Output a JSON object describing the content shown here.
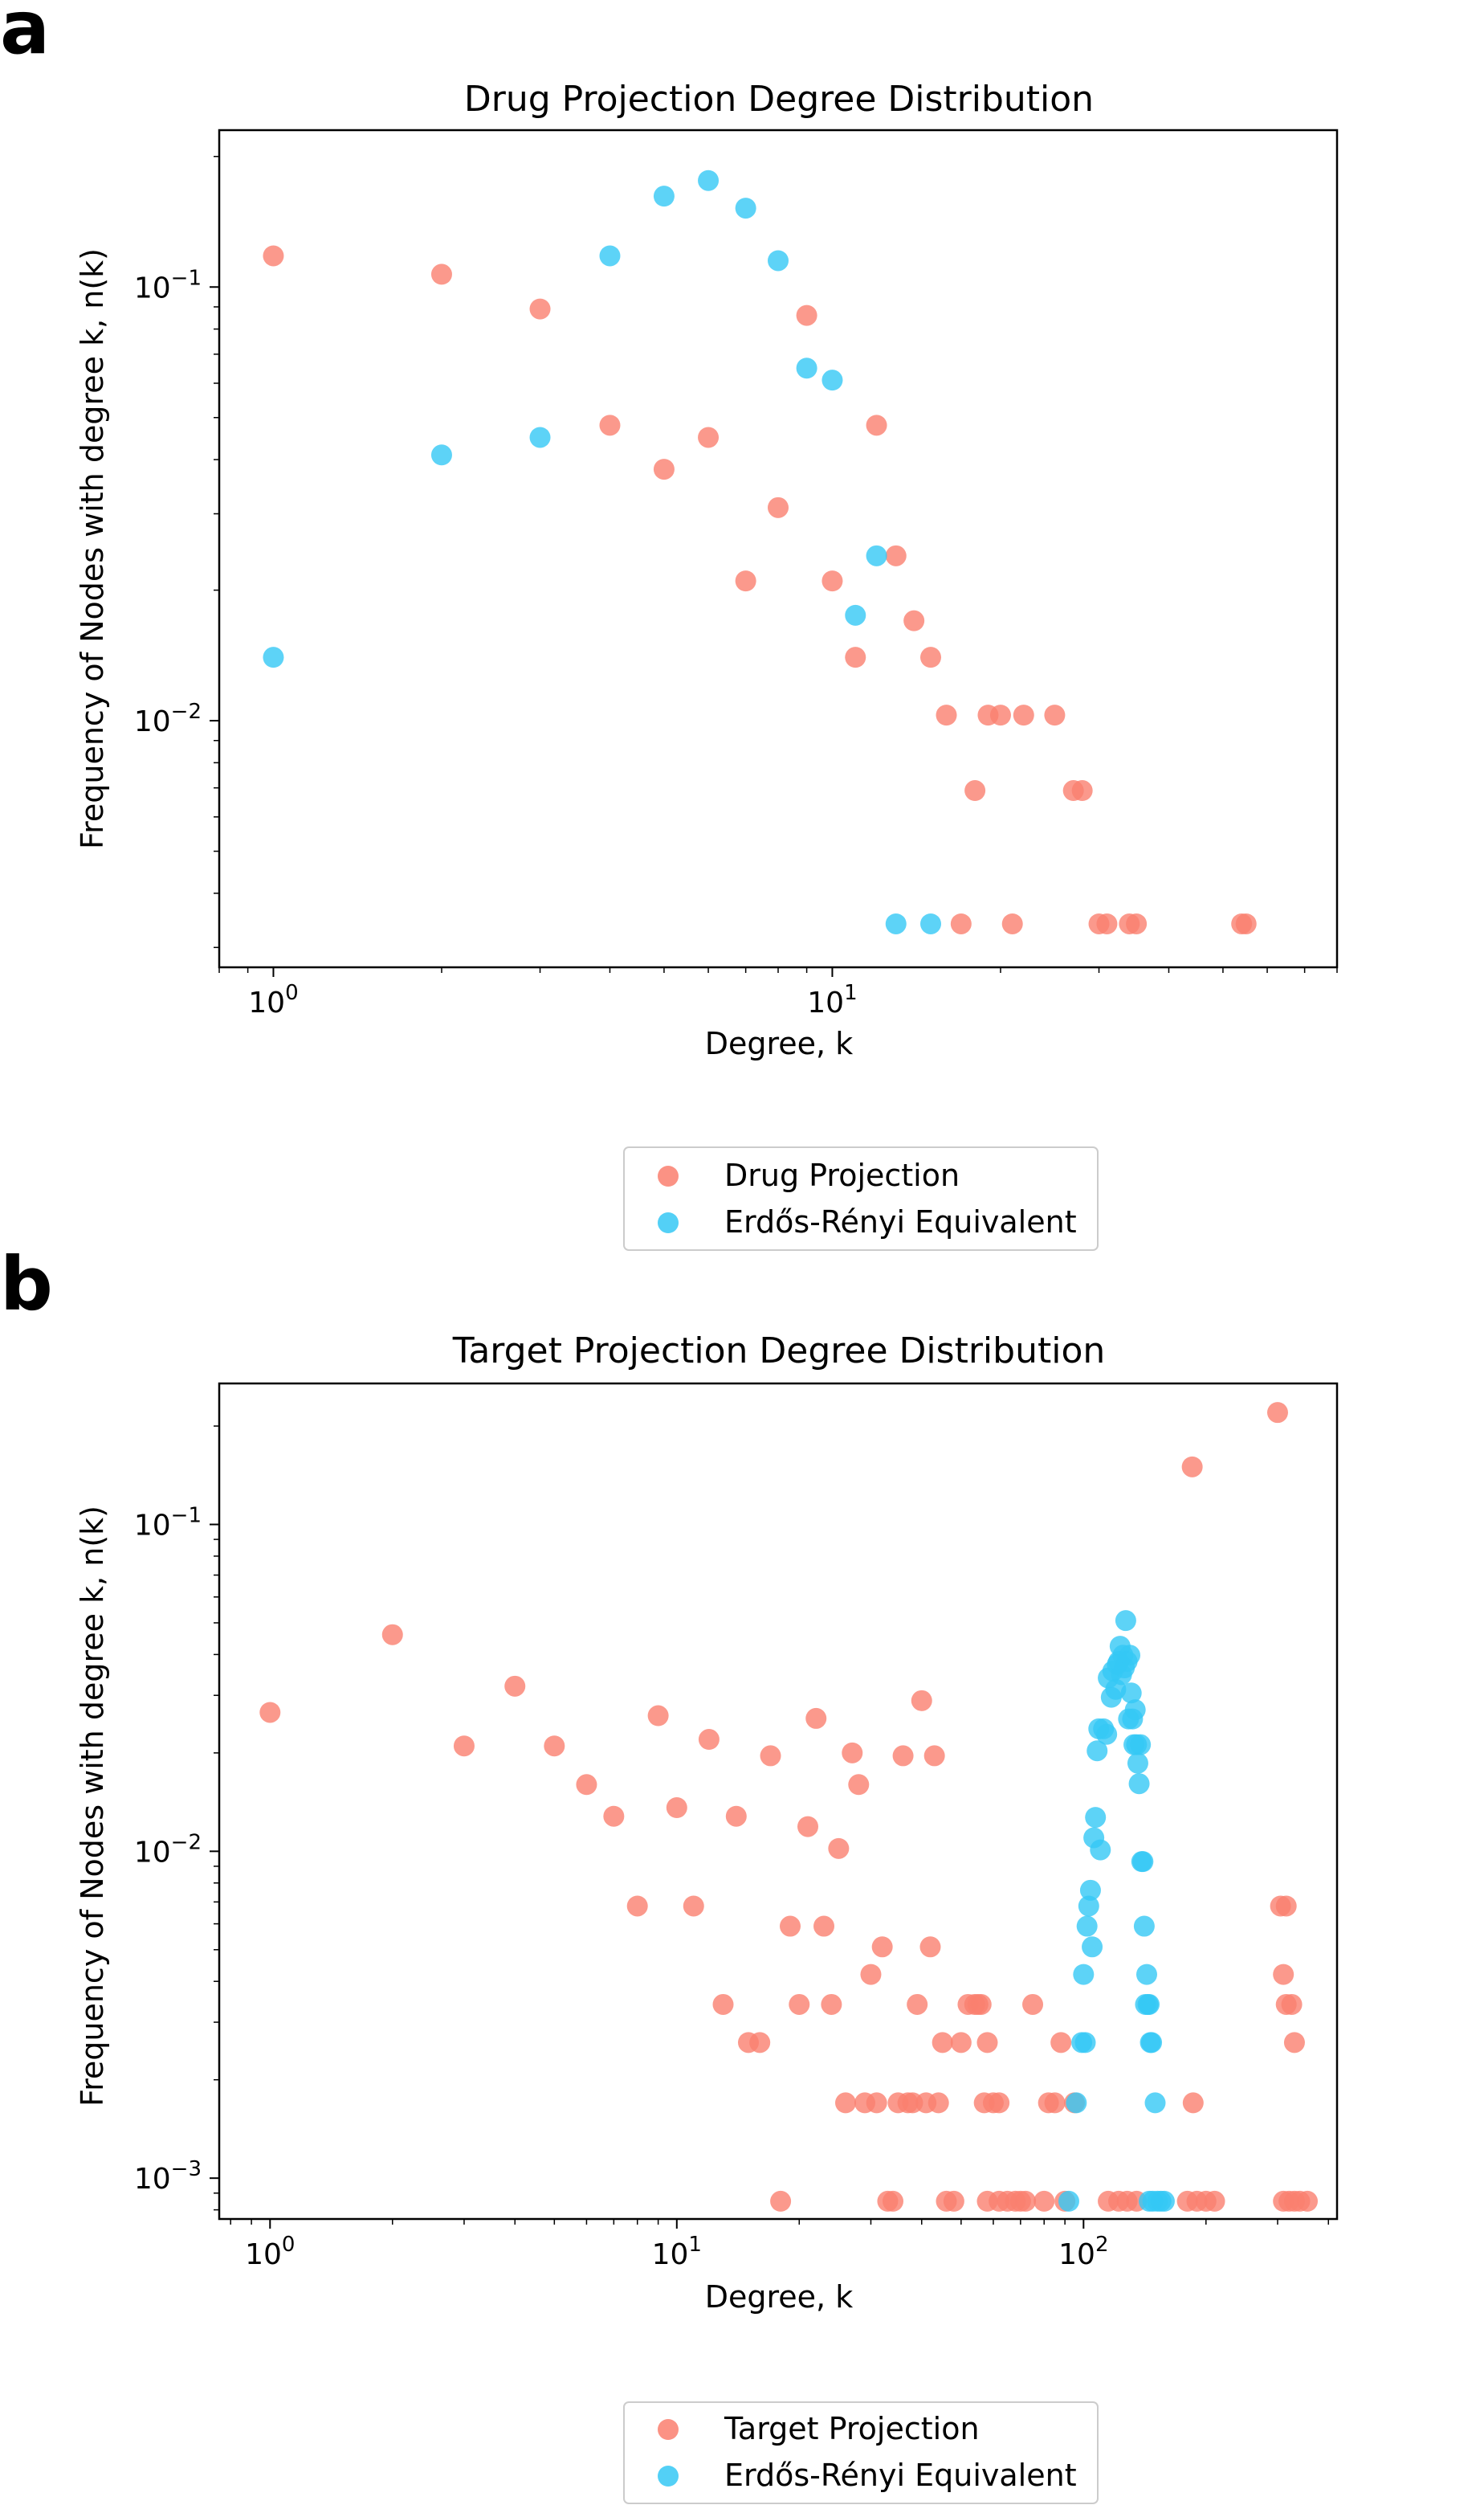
{
  "colors": {
    "series_a": "#fa7f6f",
    "series_b": "#35c8f5"
  },
  "chart_data": [
    {
      "panel_label": "a",
      "type": "scatter",
      "title": "Drug Projection Degree Distribution",
      "xlabel": "Degree, k",
      "ylabel": "Frequency of Nodes with degree k, n(k)",
      "xscale": "log",
      "yscale": "log",
      "xlim": [
        0.8,
        80
      ],
      "ylim": [
        0.0027,
        0.23
      ],
      "xticks": [
        {
          "value": 1,
          "base": "10",
          "exp": "0"
        },
        {
          "value": 10,
          "base": "10",
          "exp": "1"
        }
      ],
      "yticks": [
        {
          "value": 0.01,
          "base": "10",
          "exp": "−2"
        },
        {
          "value": 0.1,
          "base": "10",
          "exp": "−1"
        }
      ],
      "grid": false,
      "legend_position": "below",
      "series": [
        {
          "name": "Drug Projection",
          "color": "#fa7f6f",
          "points": [
            [
              1,
              0.118
            ],
            [
              2,
              0.107
            ],
            [
              3,
              0.089
            ],
            [
              4,
              0.048
            ],
            [
              5,
              0.038
            ],
            [
              6,
              0.045
            ],
            [
              7,
              0.021
            ],
            [
              8,
              0.031
            ],
            [
              9,
              0.086
            ],
            [
              10,
              0.021
            ],
            [
              11,
              0.014
            ],
            [
              12,
              0.048
            ],
            [
              13,
              0.024
            ],
            [
              14,
              0.017
            ],
            [
              15,
              0.014
            ],
            [
              16,
              0.0103
            ],
            [
              18,
              0.0069
            ],
            [
              19,
              0.0103
            ],
            [
              20,
              0.0103
            ],
            [
              22,
              0.0103
            ],
            [
              25,
              0.0103
            ],
            [
              27,
              0.0069
            ],
            [
              28,
              0.0069
            ],
            [
              17,
              0.0034
            ],
            [
              21,
              0.0034
            ],
            [
              30,
              0.0034
            ],
            [
              31,
              0.0034
            ],
            [
              34,
              0.0034
            ],
            [
              35,
              0.0034
            ],
            [
              54,
              0.0034
            ],
            [
              55,
              0.0034
            ]
          ]
        },
        {
          "name": "Erdős-Rényi Equivalent",
          "color": "#35c8f5",
          "points": [
            [
              1,
              0.014
            ],
            [
              2,
              0.041
            ],
            [
              3,
              0.045
            ],
            [
              4,
              0.118
            ],
            [
              5,
              0.162
            ],
            [
              6,
              0.176
            ],
            [
              7,
              0.152
            ],
            [
              8,
              0.115
            ],
            [
              9,
              0.065
            ],
            [
              10,
              0.061
            ],
            [
              11,
              0.0175
            ],
            [
              12,
              0.024
            ],
            [
              13,
              0.0034
            ],
            [
              15,
              0.0034
            ]
          ]
        }
      ]
    },
    {
      "panel_label": "b",
      "type": "scatter",
      "title": "Target Projection Degree Distribution",
      "xlabel": "Degree, k",
      "ylabel": "Frequency of Nodes with degree k, n(k)",
      "xscale": "log",
      "yscale": "log",
      "xlim": [
        0.75,
        420
      ],
      "ylim": [
        0.00075,
        0.27
      ],
      "xticks": [
        {
          "value": 1,
          "base": "10",
          "exp": "0"
        },
        {
          "value": 10,
          "base": "10",
          "exp": "1"
        },
        {
          "value": 100,
          "base": "10",
          "exp": "2"
        }
      ],
      "yticks": [
        {
          "value": 0.001,
          "base": "10",
          "exp": "−3"
        },
        {
          "value": 0.01,
          "base": "10",
          "exp": "−2"
        },
        {
          "value": 0.1,
          "base": "10",
          "exp": "−1"
        }
      ],
      "grid": false,
      "legend_position": "below",
      "series": [
        {
          "name": "Target Projection",
          "color": "#fa7f6f",
          "points": [
            [
              1,
              0.0266
            ],
            [
              2,
              0.046
            ],
            [
              3,
              0.021
            ],
            [
              4,
              0.032
            ],
            [
              5,
              0.021
            ],
            [
              6,
              0.016
            ],
            [
              7,
              0.0128
            ],
            [
              8,
              0.0068
            ],
            [
              9,
              0.026
            ],
            [
              10,
              0.0136
            ],
            [
              11,
              0.0068
            ],
            [
              12,
              0.022
            ],
            [
              13,
              0.0034
            ],
            [
              14,
              0.0128
            ],
            [
              15,
              0.0026
            ],
            [
              16,
              0.0026
            ],
            [
              17,
              0.0196
            ],
            [
              18,
              0.00085
            ],
            [
              19,
              0.0059
            ],
            [
              20,
              0.0034
            ],
            [
              21,
              0.0119
            ],
            [
              22,
              0.0255
            ],
            [
              23,
              0.0059
            ],
            [
              24,
              0.0034
            ],
            [
              25,
              0.0102
            ],
            [
              26,
              0.0017
            ],
            [
              27,
              0.02
            ],
            [
              28,
              0.016
            ],
            [
              29,
              0.0017
            ],
            [
              30,
              0.0042
            ],
            [
              31,
              0.0017
            ],
            [
              32,
              0.0051
            ],
            [
              33,
              0.00085
            ],
            [
              34,
              0.00085
            ],
            [
              35,
              0.0017
            ],
            [
              36,
              0.0196
            ],
            [
              37,
              0.0017
            ],
            [
              38,
              0.0017
            ],
            [
              39,
              0.0034
            ],
            [
              40,
              0.0289
            ],
            [
              41,
              0.0017
            ],
            [
              42,
              0.0051
            ],
            [
              43,
              0.0196
            ],
            [
              44,
              0.0017
            ],
            [
              45,
              0.0026
            ],
            [
              46,
              0.00085
            ],
            [
              48,
              0.00085
            ],
            [
              50,
              0.0026
            ],
            [
              52,
              0.0034
            ],
            [
              54,
              0.0034
            ],
            [
              55,
              0.0034
            ],
            [
              56,
              0.0034
            ],
            [
              57,
              0.0017
            ],
            [
              58,
              0.0026
            ],
            [
              60,
              0.0017
            ],
            [
              62,
              0.0017
            ],
            [
              58,
              0.00085
            ],
            [
              62,
              0.00085
            ],
            [
              65,
              0.00085
            ],
            [
              68,
              0.00085
            ],
            [
              70,
              0.00085
            ],
            [
              72,
              0.00085
            ],
            [
              75,
              0.0034
            ],
            [
              80,
              0.00085
            ],
            [
              82,
              0.0017
            ],
            [
              85,
              0.0017
            ],
            [
              88,
              0.0026
            ],
            [
              90,
              0.00085
            ],
            [
              95,
              0.0017
            ],
            [
              115,
              0.00085
            ],
            [
              122,
              0.00085
            ],
            [
              128,
              0.00085
            ],
            [
              135,
              0.00085
            ],
            [
              180,
              0.00085
            ],
            [
              186,
              0.0017
            ],
            [
              190,
              0.00085
            ],
            [
              200,
              0.00085
            ],
            [
              210,
              0.00085
            ],
            [
              185,
              0.15
            ],
            [
              300,
              0.22
            ],
            [
              305,
              0.0068
            ],
            [
              315,
              0.0068
            ],
            [
              310,
              0.0042
            ],
            [
              315,
              0.0034
            ],
            [
              325,
              0.0034
            ],
            [
              330,
              0.0026
            ],
            [
              310,
              0.00085
            ],
            [
              320,
              0.00085
            ],
            [
              330,
              0.00085
            ],
            [
              340,
              0.00085
            ],
            [
              355,
              0.00085
            ]
          ]
        },
        {
          "name": "Erdős-Rényi Equivalent",
          "color": "#35c8f5",
          "points": [
            [
              92,
              0.00085
            ],
            [
              96,
              0.0017
            ],
            [
              99,
              0.0026
            ],
            [
              100,
              0.0042
            ],
            [
              101,
              0.0026
            ],
            [
              102,
              0.0059
            ],
            [
              103,
              0.0068
            ],
            [
              104,
              0.0076
            ],
            [
              105,
              0.0051
            ],
            [
              106,
              0.011
            ],
            [
              107,
              0.0127
            ],
            [
              108,
              0.0203
            ],
            [
              109,
              0.0237
            ],
            [
              110,
              0.0101
            ],
            [
              112,
              0.0237
            ],
            [
              114,
              0.0228
            ],
            [
              115,
              0.0339
            ],
            [
              117,
              0.0296
            ],
            [
              118,
              0.0356
            ],
            [
              120,
              0.0313
            ],
            [
              121,
              0.0373
            ],
            [
              122,
              0.0381
            ],
            [
              123,
              0.0424
            ],
            [
              124,
              0.0347
            ],
            [
              125,
              0.0398
            ],
            [
              126,
              0.0364
            ],
            [
              127,
              0.0508
            ],
            [
              128,
              0.0381
            ],
            [
              129,
              0.0254
            ],
            [
              130,
              0.0398
            ],
            [
              131,
              0.0305
            ],
            [
              132,
              0.0254
            ],
            [
              133,
              0.0212
            ],
            [
              134,
              0.0271
            ],
            [
              135,
              0.0212
            ],
            [
              136,
              0.0186
            ],
            [
              137,
              0.0161
            ],
            [
              138,
              0.0212
            ],
            [
              139,
              0.0093
            ],
            [
              140,
              0.0093
            ],
            [
              141,
              0.0059
            ],
            [
              142,
              0.0034
            ],
            [
              143,
              0.0042
            ],
            [
              144,
              0.0034
            ],
            [
              145,
              0.0034
            ],
            [
              146,
              0.0026
            ],
            [
              147,
              0.0026
            ],
            [
              148,
              0.00085
            ],
            [
              150,
              0.0017
            ],
            [
              152,
              0.00085
            ],
            [
              155,
              0.00085
            ],
            [
              158,
              0.00085
            ],
            [
              145,
              0.00085
            ]
          ]
        }
      ]
    }
  ]
}
